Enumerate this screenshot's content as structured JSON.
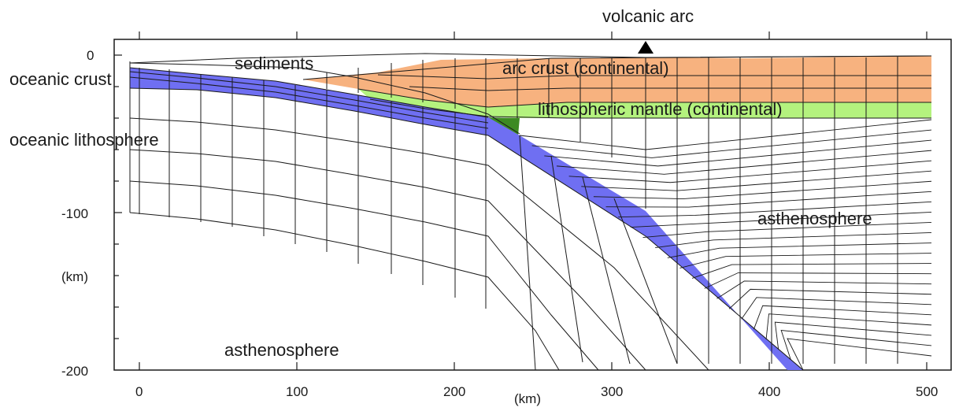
{
  "labels": {
    "volcanic_arc": "volcanic arc",
    "sediments": "sediments",
    "oceanic_crust": "oceanic crust",
    "oceanic_lithosphere": "oceanic lithosphere",
    "arc_crust": "arc crust (continental)",
    "lithospheric_mantle": "lithospheric mantle (continental)",
    "asthenosphere_right": "asthenosphere",
    "asthenosphere_bottom": "asthenosphere"
  },
  "axes": {
    "x_unit": "(km)",
    "y_unit": "(km)",
    "x_ticks": [
      "0",
      "100",
      "200",
      "300",
      "400",
      "500"
    ],
    "y_ticks": [
      "0",
      "-100",
      "-200"
    ]
  },
  "colors": {
    "arc_crust": "#f7b27f",
    "lithospheric_mantle": "#b4f27e",
    "mantle_wedge_corner": "#3d8a22",
    "slab": "#6f6ff2",
    "grid": "#1a1a1a"
  },
  "icons": {
    "volcano": "triangle-up-icon"
  }
}
